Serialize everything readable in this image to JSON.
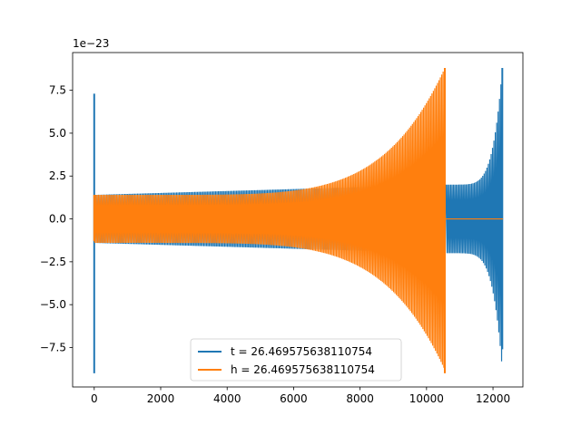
{
  "chart_data": {
    "type": "line",
    "title": "",
    "xlabel": "",
    "ylabel": "",
    "y_offset_label": "1e−23",
    "xlim": [
      -650,
      12900
    ],
    "ylim": [
      -9.8,
      9.7
    ],
    "xticks": [
      0,
      2000,
      4000,
      6000,
      8000,
      10000,
      12000
    ],
    "xtick_labels": [
      "0",
      "2000",
      "4000",
      "6000",
      "8000",
      "10000",
      "12000"
    ],
    "yticks": [
      -7.5,
      -5.0,
      -2.5,
      0.0,
      2.5,
      5.0,
      7.5
    ],
    "ytick_labels": [
      "−7.5",
      "−5.0",
      "−2.5",
      "0.0",
      "2.5",
      "5.0",
      "7.5"
    ],
    "grid": false,
    "legend_position": "lower center",
    "series": [
      {
        "name": "t = 26.469575638110754",
        "color": "#1f77b4",
        "spike_start": {
          "x": 0,
          "min": -9.0,
          "max": 7.3
        },
        "segments": [
          {
            "x": [
              0,
              10600
            ],
            "amp_start": 1.4,
            "amp_end": 2.0
          },
          {
            "x": [
              10600,
              12280
            ],
            "amp_start": 2.0,
            "amp_end": 8.8
          },
          {
            "x": [
              12280,
              12300
            ],
            "amp_start": 0.0,
            "amp_end": 0.0
          }
        ],
        "peak": {
          "x": 12280,
          "max": 8.8,
          "min": -7.6
        }
      },
      {
        "name": "h = 26.469575638110754",
        "color": "#ff7f0e",
        "spike_start": {
          "x": 0,
          "min": -1.3,
          "max": 1.4
        },
        "segments": [
          {
            "x": [
              0,
              10550
            ],
            "amp_start": 1.4,
            "amp_end": 8.8
          },
          {
            "x": [
              10550,
              12300
            ],
            "amp_start": 0.0,
            "amp_end": 0.0
          }
        ],
        "peak": {
          "x": 10550,
          "max": 8.8,
          "min": -9.0
        }
      }
    ]
  }
}
